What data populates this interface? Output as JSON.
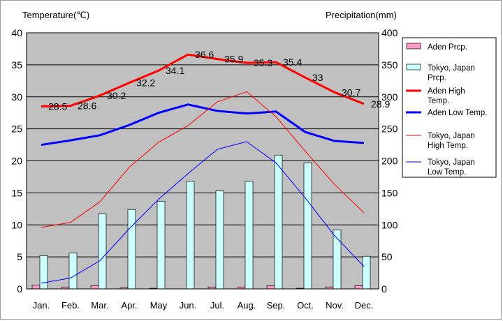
{
  "chart_data": {
    "type": "bar+line",
    "title": "",
    "y_left_label": "Temperature(℃)",
    "y_right_label": "Precipitation(mm)",
    "y_left_range": [
      0,
      40
    ],
    "y_right_range": [
      0,
      400
    ],
    "y_left_ticks": [
      "0",
      "5",
      "10",
      "15",
      "20",
      "25",
      "30",
      "35",
      "40"
    ],
    "y_right_ticks": [
      "0",
      "50",
      "100",
      "150",
      "200",
      "250",
      "300",
      "350",
      "400"
    ],
    "grid": "horizontal",
    "legend_position": "right",
    "categories": [
      "Jan.",
      "Feb.",
      "Mar.",
      "Apr.",
      "May",
      "Jun.",
      "Jul.",
      "Aug.",
      "Sep.",
      "Oct.",
      "Nov.",
      "Dec."
    ],
    "series": [
      {
        "name": "Aden Prcp.",
        "kind": "bar",
        "axis": "right",
        "color": "#ff99cc",
        "values": [
          6,
          3,
          5,
          2,
          1,
          0,
          3,
          3,
          5,
          1,
          3,
          5
        ]
      },
      {
        "name": "Tokyo, Japan Prcp.",
        "kind": "bar",
        "axis": "right",
        "color": "#ccffff",
        "values": [
          52,
          56,
          117,
          124,
          137,
          168,
          153,
          168,
          209,
          197,
          92,
          51
        ]
      },
      {
        "name": "Aden High Temp.",
        "kind": "line",
        "axis": "left",
        "color": "#ff0000",
        "width": 3,
        "values": [
          28.5,
          28.6,
          30.2,
          32.2,
          34.1,
          36.6,
          35.9,
          35.3,
          35.4,
          33,
          30.7,
          28.9
        ],
        "labels": [
          "28.5",
          "28.6",
          "30.2",
          "32.2",
          "34.1",
          "36.6",
          "35.9",
          "35.3",
          "35.4",
          "33",
          "30.7",
          "28.9"
        ]
      },
      {
        "name": "Aden Low Temp.",
        "kind": "line",
        "axis": "left",
        "color": "#0000ff",
        "width": 3,
        "values": [
          22.5,
          23.2,
          24.0,
          25.6,
          27.5,
          28.8,
          27.8,
          27.4,
          27.7,
          24.5,
          23.1,
          22.8
        ]
      },
      {
        "name": "Tokyo, Japan High Temp.",
        "kind": "line",
        "axis": "left",
        "color": "#ff0000",
        "width": 1,
        "values": [
          9.6,
          10.4,
          13.6,
          19.0,
          22.9,
          25.5,
          29.2,
          30.8,
          26.9,
          21.5,
          16.3,
          11.9
        ]
      },
      {
        "name": "Tokyo, Japan Low Temp.",
        "kind": "line",
        "axis": "left",
        "color": "#0000ff",
        "width": 1,
        "values": [
          0.9,
          1.7,
          4.4,
          9.4,
          14.0,
          18.0,
          21.8,
          23.0,
          19.7,
          14.2,
          8.3,
          3.5
        ]
      }
    ],
    "legend": [
      {
        "lines": [
          "Aden Prcp."
        ],
        "swatch": "box",
        "color": "#ff99cc"
      },
      {
        "lines": [
          "Tokyo, Japan",
          "Prcp."
        ],
        "swatch": "box",
        "color": "#ccffff"
      },
      {
        "lines": [
          "Aden High",
          "Temp."
        ],
        "swatch": "line",
        "color": "#ff0000",
        "width": 3
      },
      {
        "lines": [
          "Aden Low Temp."
        ],
        "swatch": "line",
        "color": "#0000ff",
        "width": 3
      },
      {
        "lines": [
          "Tokyo, Japan",
          "High Temp."
        ],
        "swatch": "line",
        "color": "#ff0000",
        "width": 1
      },
      {
        "lines": [
          "Tokyo, Japan",
          "Low Temp."
        ],
        "swatch": "line",
        "color": "#0000ff",
        "width": 1
      }
    ],
    "colors": {
      "plot_background": "#c0c0c0",
      "gridline": "#000000"
    }
  }
}
